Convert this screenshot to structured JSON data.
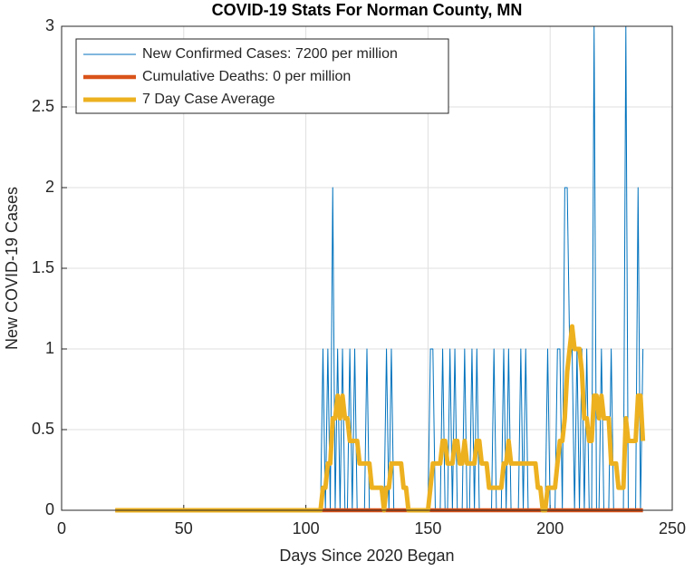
{
  "chart_data": {
    "type": "line",
    "title": "COVID-19 Stats For Norman County, MN",
    "xlabel": "Days Since 2020 Began",
    "ylabel": "New COVID-19 Cases",
    "xlim": [
      0,
      250
    ],
    "xticks": [
      0,
      50,
      100,
      150,
      200,
      250
    ],
    "ylim": [
      0,
      3
    ],
    "yticks": [
      0,
      0.5,
      1,
      1.5,
      2,
      2.5,
      3
    ],
    "grid": true,
    "legend": "upper left",
    "x": [
      22,
      23,
      24,
      25,
      26,
      27,
      28,
      29,
      30,
      31,
      32,
      33,
      34,
      35,
      36,
      37,
      38,
      39,
      40,
      41,
      42,
      43,
      44,
      45,
      46,
      47,
      48,
      49,
      50,
      51,
      52,
      53,
      54,
      55,
      56,
      57,
      58,
      59,
      60,
      61,
      62,
      63,
      64,
      65,
      66,
      67,
      68,
      69,
      70,
      71,
      72,
      73,
      74,
      75,
      76,
      77,
      78,
      79,
      80,
      81,
      82,
      83,
      84,
      85,
      86,
      87,
      88,
      89,
      90,
      91,
      92,
      93,
      94,
      95,
      96,
      97,
      98,
      99,
      100,
      101,
      102,
      103,
      104,
      105,
      106,
      107,
      108,
      109,
      110,
      111,
      112,
      113,
      114,
      115,
      116,
      117,
      118,
      119,
      120,
      121,
      122,
      123,
      124,
      125,
      126,
      127,
      128,
      129,
      130,
      131,
      132,
      133,
      134,
      135,
      136,
      137,
      138,
      139,
      140,
      141,
      142,
      143,
      144,
      145,
      146,
      147,
      148,
      149,
      150,
      151,
      152,
      153,
      154,
      155,
      156,
      157,
      158,
      159,
      160,
      161,
      162,
      163,
      164,
      165,
      166,
      167,
      168,
      169,
      170,
      171,
      172,
      173,
      174,
      175,
      176,
      177,
      178,
      179,
      180,
      181,
      182,
      183,
      184,
      185,
      186,
      187,
      188,
      189,
      190,
      191,
      192,
      193,
      194,
      195,
      196,
      197,
      198,
      199,
      200,
      201,
      202,
      203,
      204,
      205,
      206,
      207,
      208,
      209,
      210,
      211,
      212,
      213,
      214,
      215,
      216,
      217,
      218,
      219,
      220,
      221,
      222,
      223,
      224,
      225,
      226,
      227,
      228,
      229,
      230,
      231,
      232,
      233,
      234,
      235,
      236,
      237,
      238
    ],
    "series": [
      {
        "name": "New Confirmed Cases: 7200 per million",
        "color": "#0072BD",
        "width": 1,
        "values": [
          0,
          0,
          0,
          0,
          0,
          0,
          0,
          0,
          0,
          0,
          0,
          0,
          0,
          0,
          0,
          0,
          0,
          0,
          0,
          0,
          0,
          0,
          0,
          0,
          0,
          0,
          0,
          0,
          0,
          0,
          0,
          0,
          0,
          0,
          0,
          0,
          0,
          0,
          0,
          0,
          0,
          0,
          0,
          0,
          0,
          0,
          0,
          0,
          0,
          0,
          0,
          0,
          0,
          0,
          0,
          0,
          0,
          0,
          0,
          0,
          0,
          0,
          0,
          0,
          0,
          0,
          0,
          0,
          0,
          0,
          0,
          0,
          0,
          0,
          0,
          0,
          0,
          0,
          0,
          0,
          0,
          0,
          0,
          0,
          0,
          1,
          0,
          1,
          0,
          2,
          0,
          1,
          0,
          1,
          0,
          0,
          1,
          0,
          1,
          0,
          0,
          0,
          0,
          1,
          0,
          0,
          0,
          0,
          0,
          0,
          0,
          1,
          0,
          1,
          0,
          0,
          0,
          0,
          0,
          0,
          0,
          0,
          0,
          0,
          0,
          0,
          0,
          0,
          0,
          1,
          1,
          0,
          0,
          0,
          1,
          0,
          0,
          1,
          0,
          1,
          0,
          0,
          0,
          1,
          0,
          0,
          1,
          0,
          1,
          0,
          0,
          0,
          0,
          0,
          0,
          1,
          0,
          0,
          0,
          1,
          0,
          1,
          0,
          0,
          0,
          0,
          1,
          0,
          1,
          0,
          0,
          0,
          0,
          0,
          0,
          0,
          0,
          1,
          0,
          0,
          0,
          1,
          1,
          0,
          2,
          2,
          1,
          1,
          0,
          1,
          0,
          1,
          0,
          1,
          0,
          0,
          3,
          0,
          0,
          1,
          0,
          0,
          0,
          1,
          0,
          0,
          0,
          0,
          0,
          3,
          0,
          0,
          0,
          0,
          2,
          0,
          1
        ]
      },
      {
        "name": "Cumulative Deaths: 0 per million",
        "color": "#D95319",
        "width": 4.5,
        "values": [
          0,
          0,
          0,
          0,
          0,
          0,
          0,
          0,
          0,
          0,
          0,
          0,
          0,
          0,
          0,
          0,
          0,
          0,
          0,
          0,
          0,
          0,
          0,
          0,
          0,
          0,
          0,
          0,
          0,
          0,
          0,
          0,
          0,
          0,
          0,
          0,
          0,
          0,
          0,
          0,
          0,
          0,
          0,
          0,
          0,
          0,
          0,
          0,
          0,
          0,
          0,
          0,
          0,
          0,
          0,
          0,
          0,
          0,
          0,
          0,
          0,
          0,
          0,
          0,
          0,
          0,
          0,
          0,
          0,
          0,
          0,
          0,
          0,
          0,
          0,
          0,
          0,
          0,
          0,
          0,
          0,
          0,
          0,
          0,
          0,
          0,
          0,
          0,
          0,
          0,
          0,
          0,
          0,
          0,
          0,
          0,
          0,
          0,
          0,
          0,
          0,
          0,
          0,
          0,
          0,
          0,
          0,
          0,
          0,
          0,
          0,
          0,
          0,
          0,
          0,
          0,
          0,
          0,
          0,
          0,
          0,
          0,
          0,
          0,
          0,
          0,
          0,
          0,
          0,
          0,
          0,
          0,
          0,
          0,
          0,
          0,
          0,
          0,
          0,
          0,
          0,
          0,
          0,
          0,
          0,
          0,
          0,
          0,
          0,
          0,
          0,
          0,
          0,
          0,
          0,
          0,
          0,
          0,
          0,
          0,
          0,
          0,
          0,
          0,
          0,
          0,
          0,
          0,
          0,
          0,
          0,
          0,
          0,
          0,
          0,
          0,
          0,
          0,
          0,
          0,
          0,
          0,
          0,
          0,
          0,
          0,
          0,
          0,
          0,
          0,
          0,
          0,
          0,
          0,
          0,
          0,
          0,
          0,
          0,
          0,
          0,
          0,
          0,
          0,
          0,
          0,
          0,
          0,
          0,
          0,
          0,
          0,
          0,
          0,
          0,
          0,
          0
        ]
      },
      {
        "name": "7 Day Case Average",
        "color": "#EDB120",
        "width": 5,
        "values": [
          0,
          0,
          0,
          0,
          0,
          0,
          0,
          0,
          0,
          0,
          0,
          0,
          0,
          0,
          0,
          0,
          0,
          0,
          0,
          0,
          0,
          0,
          0,
          0,
          0,
          0,
          0,
          0,
          0,
          0,
          0,
          0,
          0,
          0,
          0,
          0,
          0,
          0,
          0,
          0,
          0,
          0,
          0,
          0,
          0,
          0,
          0,
          0,
          0,
          0,
          0,
          0,
          0,
          0,
          0,
          0,
          0,
          0,
          0,
          0,
          0,
          0,
          0,
          0,
          0,
          0,
          0,
          0,
          0,
          0,
          0,
          0,
          0,
          0,
          0,
          0,
          0,
          0,
          0,
          0,
          0,
          0,
          0,
          0,
          0,
          0.14,
          0.14,
          0.29,
          0.29,
          0.57,
          0.57,
          0.71,
          0.57,
          0.71,
          0.57,
          0.57,
          0.43,
          0.43,
          0.43,
          0.43,
          0.29,
          0.29,
          0.29,
          0.29,
          0.29,
          0.14,
          0.14,
          0.14,
          0.14,
          0.14,
          0,
          0.14,
          0.14,
          0.29,
          0.29,
          0.29,
          0.29,
          0.29,
          0.14,
          0.14,
          0,
          0,
          0,
          0,
          0,
          0,
          0,
          0,
          0,
          0.14,
          0.29,
          0.29,
          0.29,
          0.29,
          0.43,
          0.43,
          0.29,
          0.29,
          0.29,
          0.43,
          0.43,
          0.29,
          0.29,
          0.43,
          0.29,
          0.29,
          0.29,
          0.29,
          0.43,
          0.43,
          0.29,
          0.29,
          0.29,
          0.14,
          0.14,
          0.14,
          0.14,
          0.14,
          0.14,
          0.29,
          0.29,
          0.43,
          0.29,
          0.29,
          0.29,
          0.29,
          0.29,
          0.29,
          0.29,
          0.29,
          0.29,
          0.29,
          0.29,
          0.14,
          0.14,
          0,
          0,
          0.14,
          0.14,
          0.14,
          0.14,
          0.29,
          0.43,
          0.43,
          0.57,
          0.86,
          1,
          1.14,
          1,
          1,
          1,
          0.86,
          0.57,
          0.57,
          0.43,
          0.43,
          0.71,
          0.71,
          0.57,
          0.71,
          0.57,
          0.57,
          0.57,
          0.29,
          0.29,
          0.29,
          0.14,
          0.14,
          0.14,
          0.57,
          0.43,
          0.43,
          0.43,
          0.43,
          0.71,
          0.71,
          0.43
        ]
      }
    ]
  }
}
